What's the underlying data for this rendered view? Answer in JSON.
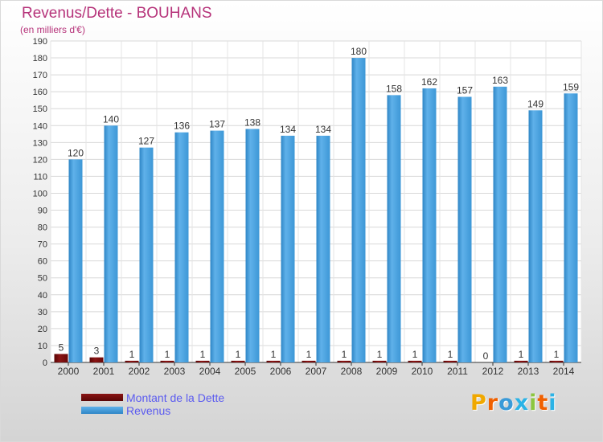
{
  "title": "Revenus/Dette - BOUHANS",
  "subtitle": "(en milliers d'€)",
  "logo": {
    "text": "Proxiti",
    "colors": [
      "#f0a800",
      "#f06000",
      "#3a9ad8",
      "#2bb3e6",
      "#8cc63f",
      "#f06000",
      "#2bb3e6"
    ]
  },
  "colors": {
    "title": "#b6337a",
    "dette": "#7a0a0a",
    "revenus": "#4aa3e0",
    "legend_text": "#5b5bf0"
  },
  "chart_data": {
    "type": "bar",
    "title": "Revenus/Dette - BOUHANS",
    "ylabel": "(en milliers d'€)",
    "xlabel": "",
    "categories": [
      "2000",
      "2001",
      "2002",
      "2003",
      "2004",
      "2005",
      "2006",
      "2007",
      "2008",
      "2009",
      "2010",
      "2011",
      "2012",
      "2013",
      "2014"
    ],
    "series": [
      {
        "name": "Montant de la Dette",
        "color": "#7a0a0a",
        "values": [
          5,
          3,
          1,
          1,
          1,
          1,
          1,
          1,
          1,
          1,
          1,
          1,
          0,
          1,
          1
        ]
      },
      {
        "name": "Revenus",
        "color": "#4aa3e0",
        "values": [
          120,
          140,
          127,
          136,
          137,
          138,
          134,
          134,
          180,
          158,
          162,
          157,
          163,
          149,
          159
        ]
      }
    ],
    "ylim": [
      0,
      190
    ],
    "yticks": [
      0,
      10,
      20,
      30,
      40,
      50,
      60,
      70,
      80,
      90,
      100,
      110,
      120,
      130,
      140,
      150,
      160,
      170,
      180,
      190
    ],
    "grid": true,
    "legend_position": "bottom-left"
  }
}
